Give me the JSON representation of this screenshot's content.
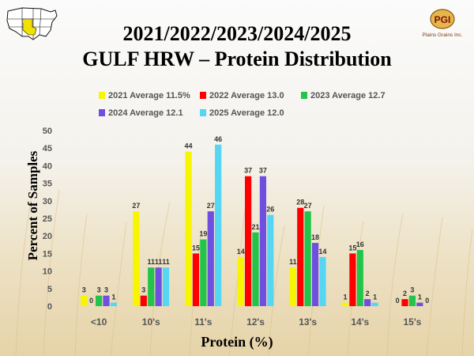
{
  "title_line1": "2021/2022/2023/2024/2025",
  "title_line2": "GULF HRW – Protein Distribution",
  "logo": {
    "abbr": "PGI",
    "name": "Plains Grains Inc."
  },
  "chart_data": {
    "type": "bar",
    "categories": [
      "<10",
      "10's",
      "11's",
      "12's",
      "13's",
      "14's",
      "15's"
    ],
    "series": [
      {
        "name": "2021 Average 11.5%",
        "color": "#f7f500",
        "values": [
          3,
          27,
          44,
          14,
          11,
          1,
          0
        ]
      },
      {
        "name": "2022 Average 13.0",
        "color": "#ff0000",
        "values": [
          0,
          3,
          15,
          37,
          28,
          15,
          2
        ]
      },
      {
        "name": "2023 Average 12.7",
        "color": "#22c44a",
        "values": [
          3,
          11,
          19,
          21,
          27,
          16,
          3
        ]
      },
      {
        "name": "2024 Average 12.1",
        "color": "#6f4fe0",
        "values": [
          3,
          11,
          27,
          37,
          18,
          2,
          1
        ]
      },
      {
        "name": "2025 Average 12.0",
        "color": "#55d6f3",
        "values": [
          1,
          11,
          46,
          26,
          14,
          1,
          0
        ]
      }
    ],
    "xlabel": "Protein (%)",
    "ylabel": "Percent of Samples",
    "ylim": [
      0,
      50
    ],
    "yticks": [
      0,
      5,
      10,
      15,
      20,
      25,
      30,
      35,
      40,
      45,
      50
    ],
    "grid": false,
    "legend": "top"
  }
}
